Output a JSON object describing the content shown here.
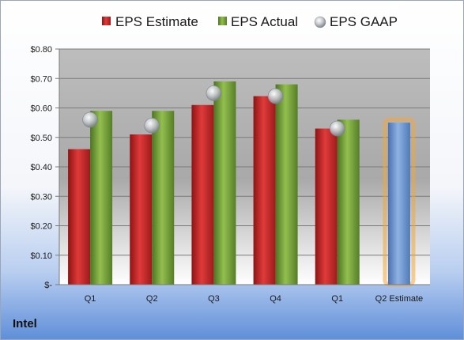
{
  "company": "Intel",
  "colors": {
    "estimate": "#cc2b2b",
    "actual": "#7aa33a",
    "gaap": "#b8bcc2",
    "forecast": "#6f98d2",
    "forecast_glow": "#f2a63c"
  },
  "chart_data": {
    "type": "bar",
    "categories": [
      "Q1",
      "Q2",
      "Q3",
      "Q4",
      "Q1",
      "Q2 Estimate"
    ],
    "ylim": [
      0,
      0.8
    ],
    "yticks": [
      0,
      0.1,
      0.2,
      0.3,
      0.4,
      0.5,
      0.6,
      0.7,
      0.8
    ],
    "ytick_labels": [
      "$-",
      "$0.10",
      "$0.20",
      "$0.30",
      "$0.40",
      "$0.50",
      "$0.60",
      "$0.70",
      "$0.80"
    ],
    "legend_position": "top",
    "grid": true,
    "series": [
      {
        "name": "EPS Estimate",
        "type": "bar",
        "values": [
          0.46,
          0.51,
          0.61,
          0.64,
          0.53,
          null
        ]
      },
      {
        "name": "EPS Actual",
        "type": "bar",
        "values": [
          0.59,
          0.59,
          0.69,
          0.68,
          0.56,
          null
        ]
      },
      {
        "name": "EPS GAAP",
        "type": "marker",
        "values": [
          0.56,
          0.54,
          0.65,
          0.64,
          0.53,
          null
        ]
      }
    ],
    "forecast": {
      "category": "Q2 Estimate",
      "value": 0.55
    }
  }
}
